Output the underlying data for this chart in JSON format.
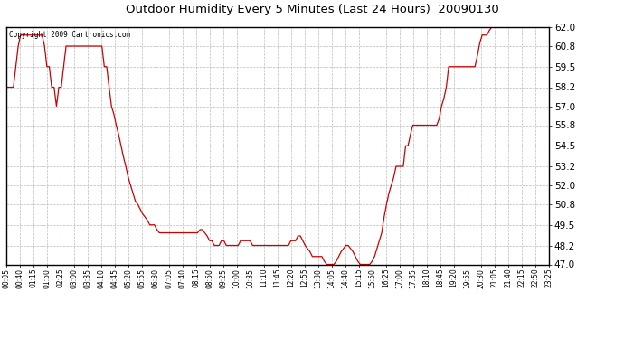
{
  "title": "Outdoor Humidity Every 5 Minutes (Last 24 Hours)  20090130",
  "copyright": "Copyright 2009 Cartronics.com",
  "line_color": "#cc0000",
  "background_color": "#ffffff",
  "grid_color": "#bbbbbb",
  "ylim": [
    47.0,
    62.0
  ],
  "yticks": [
    47.0,
    48.2,
    49.5,
    50.8,
    52.0,
    53.2,
    54.5,
    55.8,
    57.0,
    58.2,
    59.5,
    60.8,
    62.0
  ],
  "xtick_labels": [
    "00:05",
    "00:40",
    "01:15",
    "01:50",
    "02:25",
    "03:00",
    "03:35",
    "04:10",
    "04:45",
    "05:20",
    "05:55",
    "06:30",
    "07:05",
    "07:40",
    "08:15",
    "08:50",
    "09:25",
    "10:00",
    "10:35",
    "11:10",
    "11:45",
    "12:20",
    "12:55",
    "13:30",
    "14:05",
    "14:40",
    "15:15",
    "15:50",
    "16:25",
    "17:00",
    "17:35",
    "18:10",
    "18:45",
    "19:20",
    "19:55",
    "20:30",
    "21:05",
    "21:40",
    "22:15",
    "22:50",
    "23:25"
  ],
  "humidity_data": [
    58.2,
    58.2,
    58.2,
    58.2,
    59.5,
    60.8,
    61.5,
    61.5,
    61.5,
    61.5,
    61.5,
    61.5,
    61.5,
    61.5,
    61.5,
    61.5,
    60.8,
    59.5,
    59.5,
    58.2,
    58.2,
    57.0,
    58.2,
    58.2,
    59.5,
    60.8,
    60.8,
    60.8,
    60.8,
    60.8,
    60.8,
    60.8,
    60.8,
    60.8,
    60.8,
    60.8,
    60.8,
    60.8,
    60.8,
    60.8,
    60.8,
    59.5,
    59.5,
    58.2,
    57.0,
    56.5,
    55.8,
    55.2,
    54.5,
    53.8,
    53.2,
    52.5,
    52.0,
    51.5,
    51.0,
    50.8,
    50.5,
    50.2,
    50.0,
    49.8,
    49.5,
    49.5,
    49.5,
    49.2,
    49.0,
    49.0,
    49.0,
    49.0,
    49.0,
    49.0,
    49.0,
    49.0,
    49.0,
    49.0,
    49.0,
    49.0,
    49.0,
    49.0,
    49.0,
    49.0,
    49.0,
    49.2,
    49.2,
    49.0,
    48.8,
    48.5,
    48.5,
    48.2,
    48.2,
    48.2,
    48.5,
    48.5,
    48.2,
    48.2,
    48.2,
    48.2,
    48.2,
    48.2,
    48.5,
    48.5,
    48.5,
    48.5,
    48.5,
    48.2,
    48.2,
    48.2,
    48.2,
    48.2,
    48.2,
    48.2,
    48.2,
    48.2,
    48.2,
    48.2,
    48.2,
    48.2,
    48.2,
    48.2,
    48.2,
    48.5,
    48.5,
    48.5,
    48.8,
    48.8,
    48.5,
    48.2,
    48.0,
    47.8,
    47.5,
    47.5,
    47.5,
    47.5,
    47.5,
    47.2,
    47.0,
    47.0,
    47.0,
    47.0,
    47.2,
    47.5,
    47.8,
    48.0,
    48.2,
    48.2,
    48.0,
    47.8,
    47.5,
    47.2,
    47.0,
    47.0,
    47.0,
    47.0,
    47.0,
    47.2,
    47.5,
    48.0,
    48.5,
    49.0,
    50.0,
    50.8,
    51.5,
    52.0,
    52.5,
    53.2,
    53.2,
    53.2,
    53.2,
    54.5,
    54.5,
    55.2,
    55.8,
    55.8,
    55.8,
    55.8,
    55.8,
    55.8,
    55.8,
    55.8,
    55.8,
    55.8,
    55.8,
    56.2,
    57.0,
    57.5,
    58.2,
    59.5,
    59.5,
    59.5,
    59.5,
    59.5,
    59.5,
    59.5,
    59.5,
    59.5,
    59.5,
    59.5,
    59.5,
    60.2,
    61.0,
    61.5,
    61.5,
    61.5,
    61.8,
    62.0,
    62.0,
    62.0,
    62.0,
    62.0,
    62.0,
    62.0,
    62.0,
    62.0,
    62.0,
    62.0,
    62.0,
    62.0,
    62.0,
    62.0,
    62.0,
    62.0,
    62.0,
    62.0,
    62.0,
    62.0,
    62.0,
    62.0,
    62.0,
    62.5
  ]
}
